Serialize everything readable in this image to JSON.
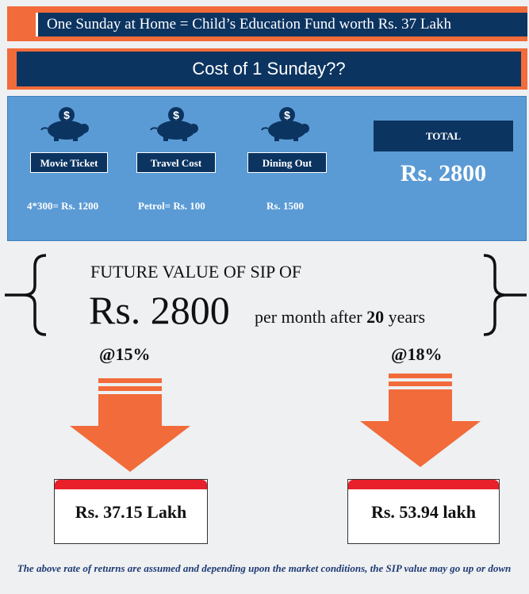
{
  "header": {
    "banner_text": "One Sunday at Home = Child’s Education Fund worth Rs. 37 Lakh",
    "cost_title": "Cost of 1 Sunday??"
  },
  "expenses": [
    {
      "label": "Movie Ticket",
      "value": "4*300= Rs. 1200",
      "icon": "piggy-bank-icon"
    },
    {
      "label": "Travel Cost",
      "value": "Petrol= Rs. 100",
      "icon": "piggy-bank-icon"
    },
    {
      "label": "Dining Out",
      "value": "Rs. 1500",
      "icon": "piggy-bank-icon"
    }
  ],
  "total": {
    "label": "TOTAL",
    "value": "Rs. 2800"
  },
  "future_value": {
    "title": "FUTURE VALUE OF SIP OF",
    "amount": "Rs. 2800",
    "per_month_text": "per month after",
    "years": "20",
    "years_unit": "years"
  },
  "scenarios": [
    {
      "rate": "@15%",
      "result": "Rs. 37.15 Lakh"
    },
    {
      "rate": "@18%",
      "result": "Rs. 53.94 lakh"
    }
  ],
  "disclaimer": "The above rate of returns are assumed and depending upon the market conditions, the SIP value may go up or down",
  "colors": {
    "orange": "#f26b3a",
    "navy": "#0c3461",
    "panel_blue": "#5b9bd5",
    "red": "#e8202a"
  }
}
